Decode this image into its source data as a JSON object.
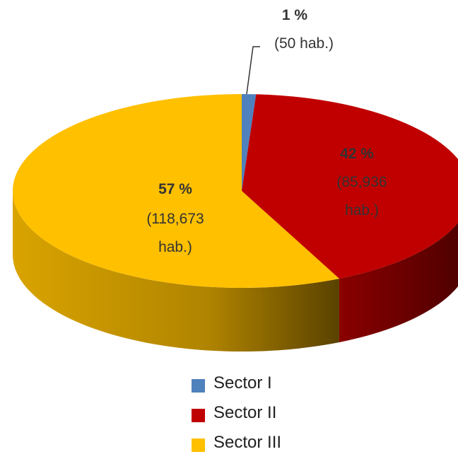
{
  "chart_data": {
    "type": "pie",
    "categories": [
      "Sector I",
      "Sector II",
      "Sector III"
    ],
    "values": [
      1,
      42,
      57
    ],
    "value_labels": [
      "1 %",
      "42 %",
      "57 %"
    ],
    "population_labels": [
      "(50 hab.)",
      "(85,936 hab.)",
      "(118,673 hab.)"
    ],
    "colors": [
      "#4f81bd",
      "#c00000",
      "#ffc000"
    ],
    "legend": "bottom"
  }
}
